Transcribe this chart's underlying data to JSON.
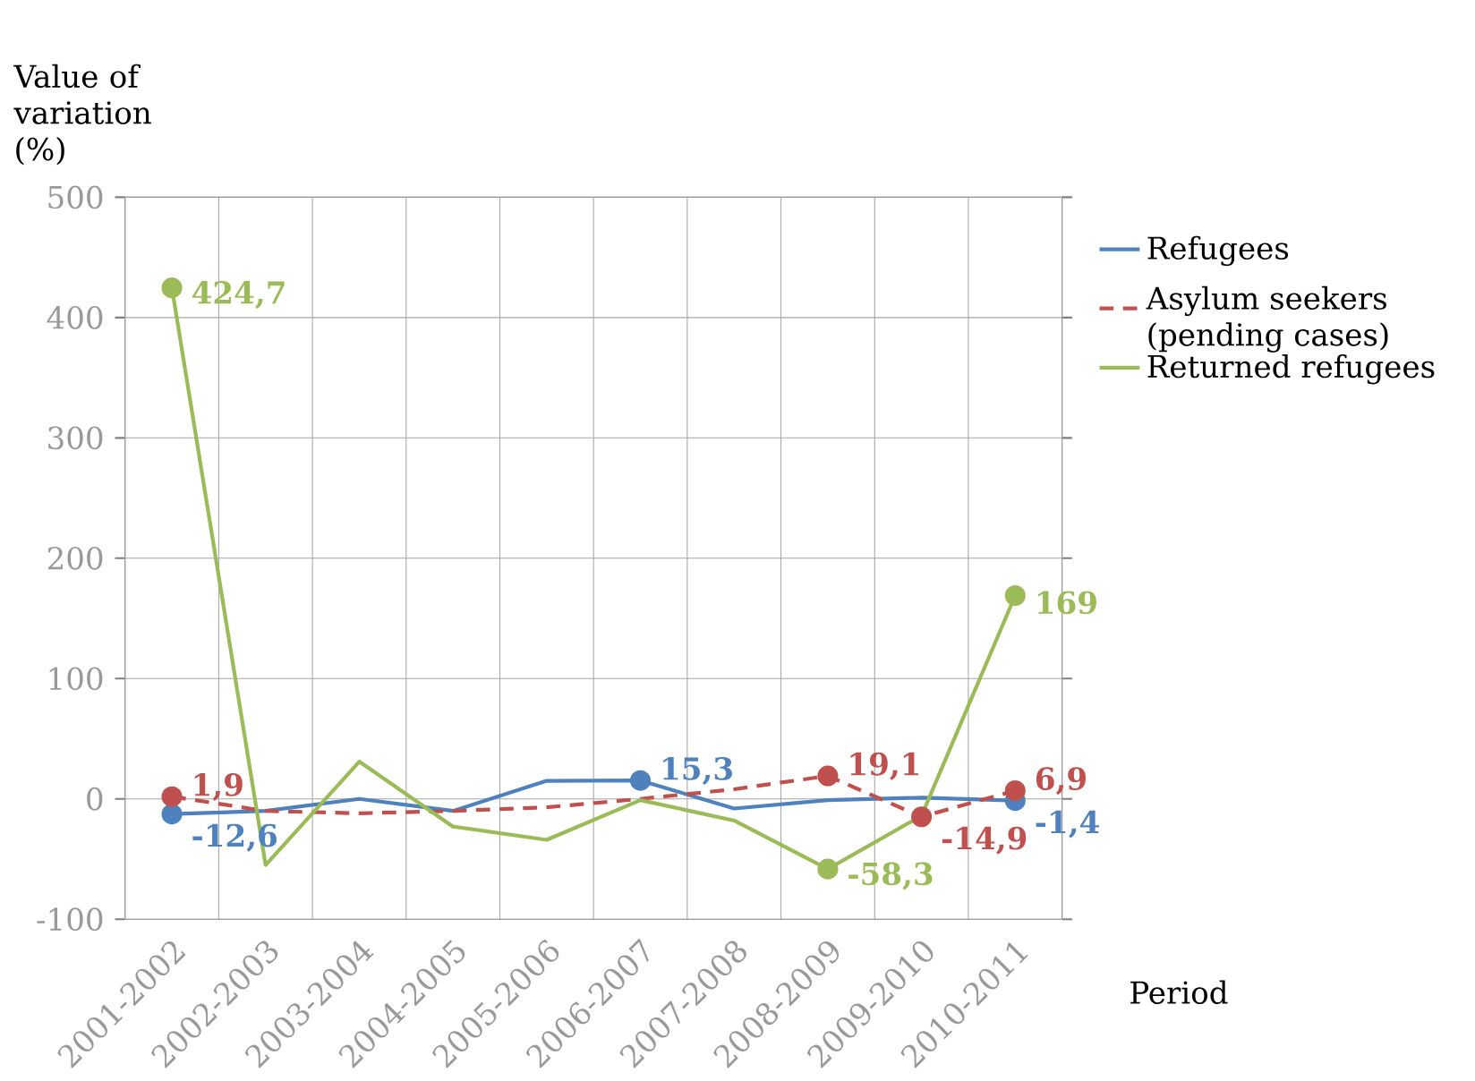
{
  "chart_data": {
    "type": "line",
    "ylabel": "Value of variation (%)",
    "xlabel": "Period",
    "categories": [
      "2001-2002",
      "2002-2003",
      "2003-2004",
      "2004-2005",
      "2005-2006",
      "2006-2007",
      "2007-2008",
      "2008-2009",
      "2009-2010",
      "2010-2011"
    ],
    "series": [
      {
        "name": "Refugees",
        "color": "#4f81bd",
        "line_style": "solid",
        "values": [
          -12.6,
          -10,
          0,
          -10,
          15,
          15.3,
          -8,
          -1,
          1,
          -1.4
        ],
        "value_labels": [
          "-12,6",
          null,
          null,
          null,
          null,
          "15,3",
          null,
          null,
          null,
          "-1,4"
        ]
      },
      {
        "name": "Asylum seekers (pending cases)",
        "color": "#c0504d",
        "line_style": "dashed",
        "values": [
          1.9,
          -10,
          -12,
          -10,
          -7,
          0,
          8,
          19.1,
          -14.9,
          6.9
        ],
        "value_labels": [
          "1,9",
          null,
          null,
          null,
          null,
          null,
          null,
          "19,1",
          "-14,9",
          "6,9"
        ]
      },
      {
        "name": "Returned refugees",
        "color": "#9bbb59",
        "line_style": "solid",
        "values": [
          424.7,
          -55,
          31,
          -23,
          -34,
          -1,
          -18,
          -58.3,
          -14,
          169
        ],
        "value_labels": [
          "424,7",
          null,
          null,
          null,
          null,
          null,
          null,
          "-58,3",
          null,
          "169"
        ]
      }
    ],
    "ylim": [
      -100,
      500
    ],
    "yticks": [
      -100,
      0,
      100,
      200,
      300,
      400,
      500
    ],
    "grid": true,
    "legend": "right"
  }
}
